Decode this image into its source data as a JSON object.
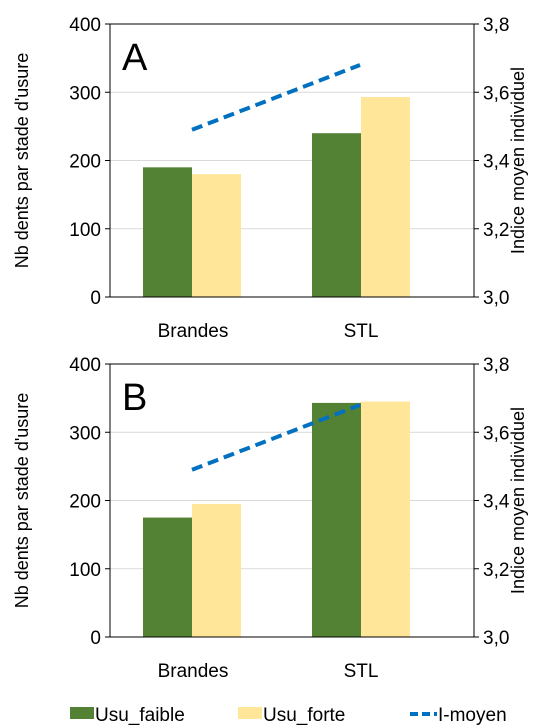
{
  "chart_data": [
    {
      "panel_label": "A",
      "type": "bar",
      "categories": [
        "Brandes",
        "STL"
      ],
      "series": [
        {
          "name": "Usu_faible",
          "values": [
            190,
            240
          ],
          "color": "#548235"
        },
        {
          "name": "Usu_forte",
          "values": [
            180,
            293
          ],
          "color": "#FFE699"
        }
      ],
      "line_series": {
        "name": "I-moyen",
        "axis": "right",
        "values": [
          3.49,
          3.68
        ],
        "color": "#0070C0",
        "style": "dashed"
      },
      "ylabel": "Nb dents par stade d'usure",
      "y2label": "Indice moyen individuel",
      "ylim": [
        0,
        400
      ],
      "y2lim": [
        3.0,
        3.8
      ],
      "yticks": [
        "0",
        "100",
        "200",
        "300",
        "400"
      ],
      "y2ticks": [
        "3,0",
        "3,2",
        "3,4",
        "3,6",
        "3,8"
      ]
    },
    {
      "panel_label": "B",
      "type": "bar",
      "categories": [
        "Brandes",
        "STL"
      ],
      "series": [
        {
          "name": "Usu_faible",
          "values": [
            175,
            343
          ],
          "color": "#548235"
        },
        {
          "name": "Usu_forte",
          "values": [
            195,
            345
          ],
          "color": "#FFE699"
        }
      ],
      "line_series": {
        "name": "I-moyen",
        "axis": "right",
        "values": [
          3.49,
          3.68
        ],
        "color": "#0070C0",
        "style": "dashed"
      },
      "ylabel": "Nb dents par stade d'usure",
      "y2label": "Indice moyen individuel",
      "ylim": [
        0,
        400
      ],
      "y2lim": [
        3.0,
        3.8
      ],
      "yticks": [
        "0",
        "100",
        "200",
        "300",
        "400"
      ],
      "y2ticks": [
        "3,0",
        "3,2",
        "3,4",
        "3,6",
        "3,8"
      ]
    }
  ],
  "legend": {
    "placement": "bottom",
    "items": [
      {
        "label": "Usu_faible",
        "kind": "box",
        "color": "#548235"
      },
      {
        "label": "Usu_forte",
        "kind": "box",
        "color": "#FFE699"
      },
      {
        "label": "I-moyen",
        "kind": "dashed-line",
        "color": "#0070C0"
      }
    ]
  }
}
